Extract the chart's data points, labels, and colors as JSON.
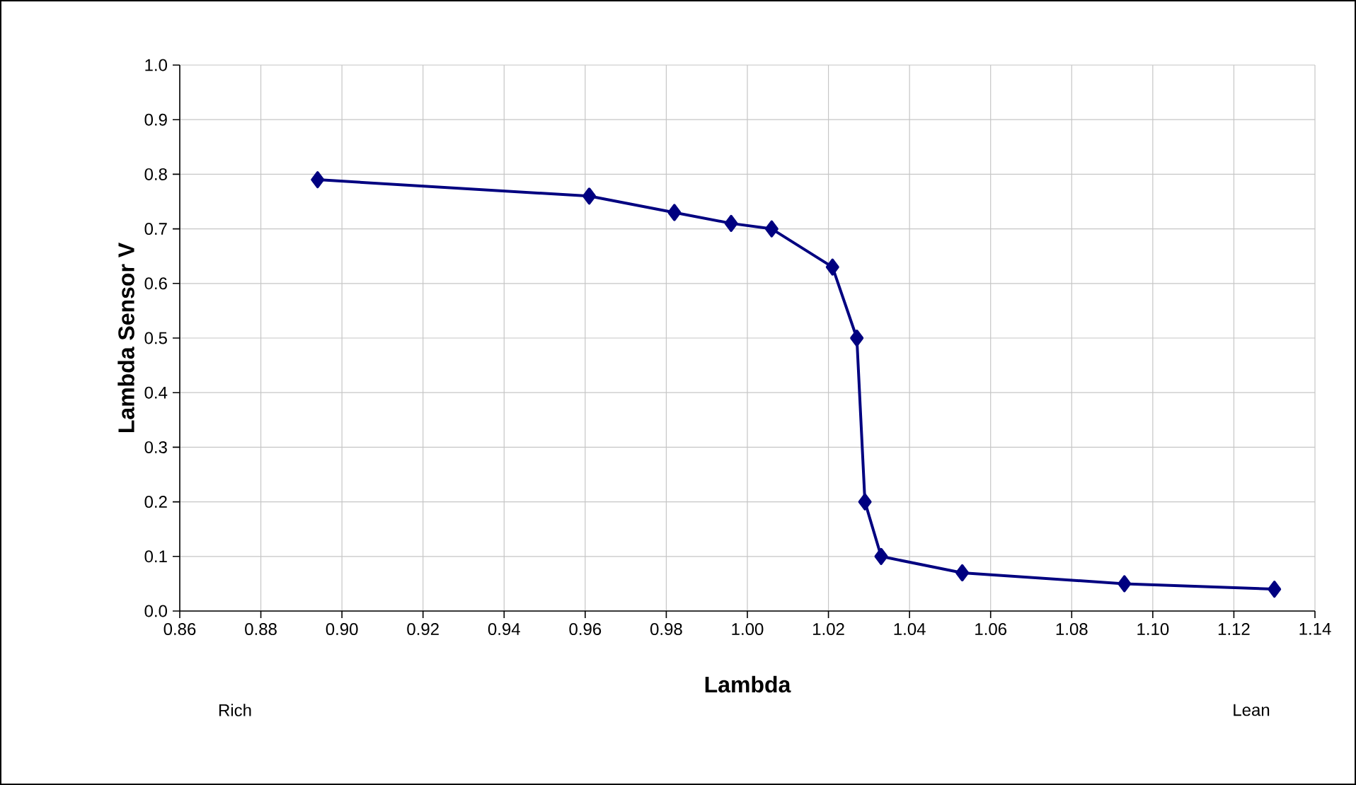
{
  "chart_data": {
    "type": "line",
    "xlabel": "Lambda",
    "ylabel": "Lambda Sensor V",
    "x": [
      0.894,
      0.961,
      0.982,
      0.996,
      1.006,
      1.021,
      1.027,
      1.029,
      1.033,
      1.053,
      1.093,
      1.13
    ],
    "series": [
      {
        "color": "#000080",
        "values": [
          0.79,
          0.76,
          0.73,
          0.71,
          0.7,
          0.63,
          0.5,
          0.2,
          0.1,
          0.07,
          0.05,
          0.04
        ]
      }
    ],
    "xlim": [
      0.86,
      1.14
    ],
    "ylim": [
      0.0,
      1.0
    ],
    "xticks": [
      {
        "value": 0.86,
        "label": "0.86"
      },
      {
        "value": 0.88,
        "label": "0.88"
      },
      {
        "value": 0.9,
        "label": "0.90"
      },
      {
        "value": 0.92,
        "label": "0.92"
      },
      {
        "value": 0.94,
        "label": "0.94"
      },
      {
        "value": 0.96,
        "label": "0.96"
      },
      {
        "value": 0.98,
        "label": "0.98"
      },
      {
        "value": 1.0,
        "label": "1.00"
      },
      {
        "value": 1.02,
        "label": "1.02"
      },
      {
        "value": 1.04,
        "label": "1.04"
      },
      {
        "value": 1.06,
        "label": "1.06"
      },
      {
        "value": 1.08,
        "label": "1.08"
      },
      {
        "value": 1.1,
        "label": "1.10"
      },
      {
        "value": 1.12,
        "label": "1.12"
      },
      {
        "value": 1.14,
        "label": "1.14"
      }
    ],
    "yticks": [
      {
        "value": 0.0,
        "label": "0.0"
      },
      {
        "value": 0.1,
        "label": "0.1"
      },
      {
        "value": 0.2,
        "label": "0.2"
      },
      {
        "value": 0.3,
        "label": "0.3"
      },
      {
        "value": 0.4,
        "label": "0.4"
      },
      {
        "value": 0.5,
        "label": "0.5"
      },
      {
        "value": 0.6,
        "label": "0.6"
      },
      {
        "value": 0.7,
        "label": "0.7"
      },
      {
        "value": 0.8,
        "label": "0.8"
      },
      {
        "value": 0.9,
        "label": "0.9"
      },
      {
        "value": 1.0,
        "label": "1.0"
      }
    ],
    "annotations": [
      "Rich",
      "Lean"
    ],
    "grid": true,
    "marker": "diamond",
    "line_style": "solid"
  }
}
